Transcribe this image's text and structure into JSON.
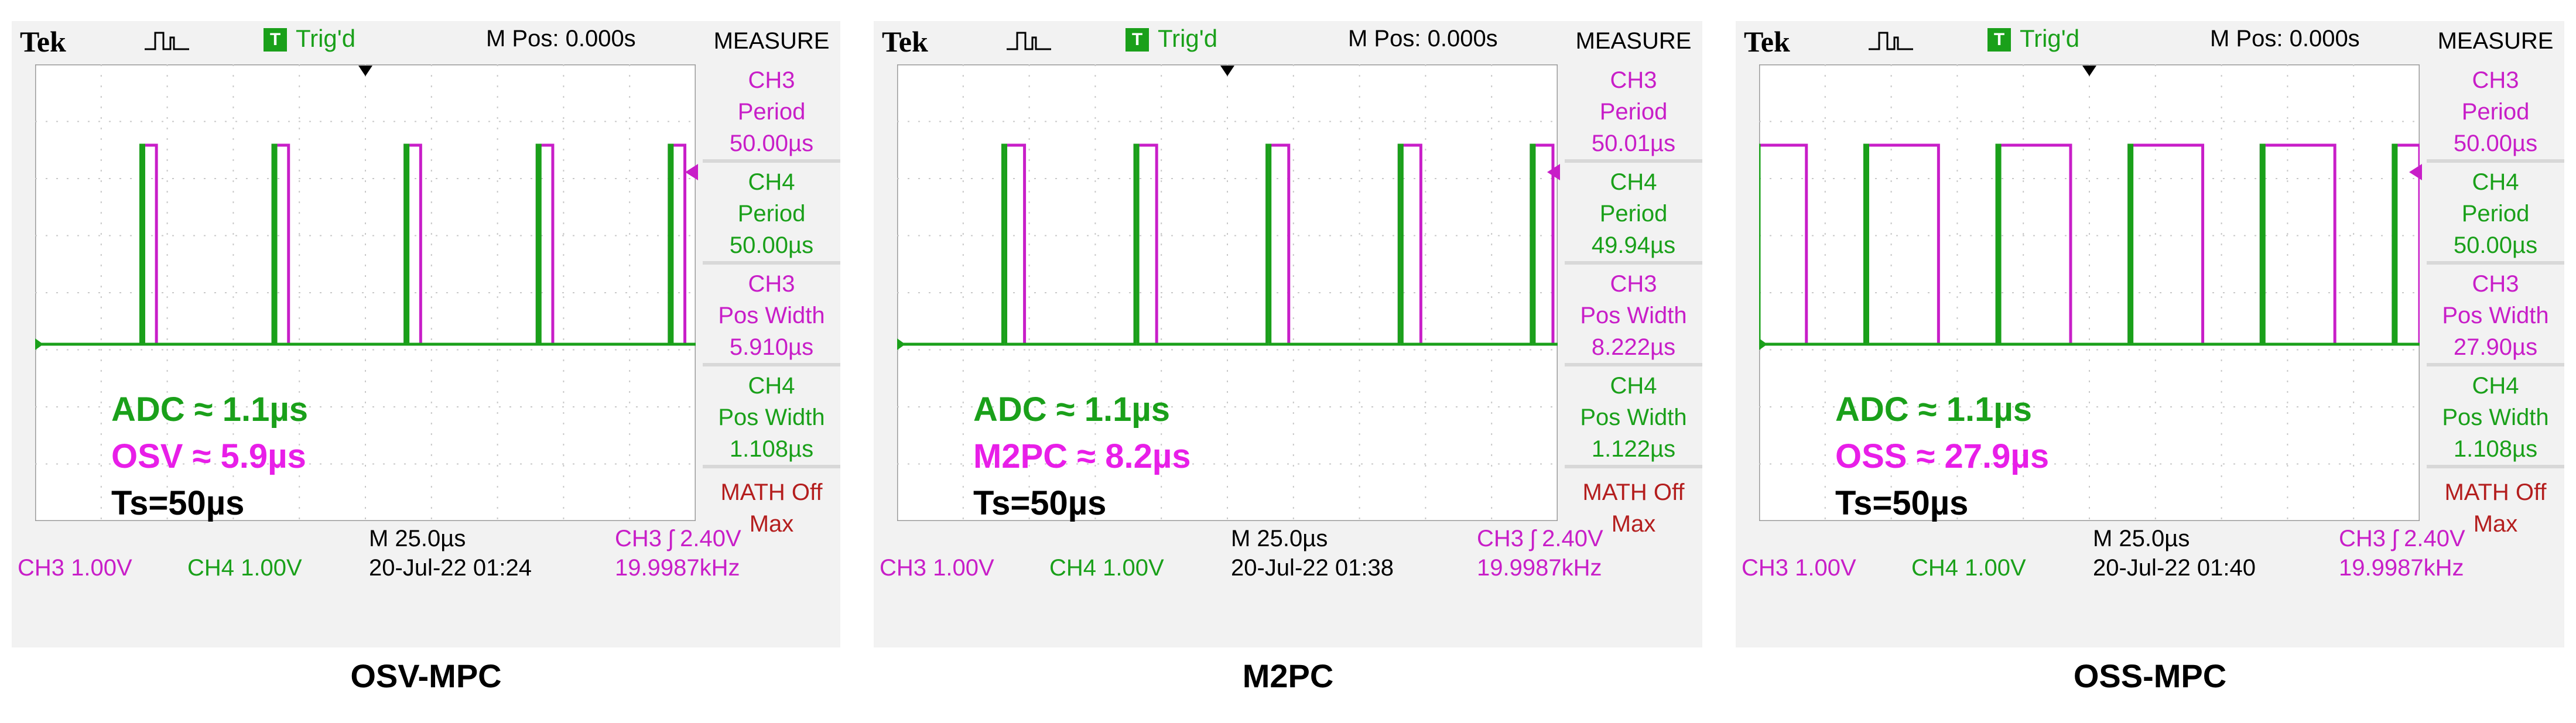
{
  "colors": {
    "ch3": "#c81ec8",
    "ch4": "#1aa01a",
    "math": "#b41e1e",
    "trig": "#1aa01a"
  },
  "panels": [
    {
      "brand": "Tek",
      "trig_icon": "T",
      "trig_status": "Trig'd",
      "mpos": "M Pos: 0.000s",
      "measure_title": "MEASURE",
      "measures": [
        {
          "ch": "CH3",
          "label": "Period",
          "value": "50.00µs"
        },
        {
          "ch": "CH4",
          "label": "Period",
          "value": "50.00µs"
        },
        {
          "ch": "CH3",
          "label": "Pos Width",
          "value": "5.910µs"
        },
        {
          "ch": "CH4",
          "label": "Pos Width",
          "value": "1.108µs"
        }
      ],
      "math": "MATH Off",
      "math_sub": "Max",
      "ch3_scale": "CH3  1.00V",
      "ch4_scale": "CH4  1.00V",
      "timebase": "M 25.0µs",
      "datetime": "20-Jul-22 01:24",
      "trigger": "CH3 ʃ 2.40V",
      "freq": "19.9987kHz",
      "ann_adc": "ADC ≈ 1.1µs",
      "ann_method": "OSV ≈ 5.9µs",
      "ann_ts": "Ts=50µs",
      "caption": "OSV-MPC",
      "pulse_width_us": 5.91,
      "adc_width_us": 1.108
    },
    {
      "brand": "Tek",
      "trig_icon": "T",
      "trig_status": "Trig'd",
      "mpos": "M Pos: 0.000s",
      "measure_title": "MEASURE",
      "measures": [
        {
          "ch": "CH3",
          "label": "Period",
          "value": "50.01µs"
        },
        {
          "ch": "CH4",
          "label": "Period",
          "value": "49.94µs"
        },
        {
          "ch": "CH3",
          "label": "Pos Width",
          "value": "8.222µs"
        },
        {
          "ch": "CH4",
          "label": "Pos Width",
          "value": "1.122µs"
        }
      ],
      "math": "MATH Off",
      "math_sub": "Max",
      "ch3_scale": "CH3  1.00V",
      "ch4_scale": "CH4  1.00V",
      "timebase": "M 25.0µs",
      "datetime": "20-Jul-22 01:38",
      "trigger": "CH3 ʃ 2.40V",
      "freq": "19.9987kHz",
      "ann_adc": "ADC ≈ 1.1µs",
      "ann_method": "M2PC ≈ 8.2µs",
      "ann_ts": "Ts=50µs",
      "caption": "M2PC",
      "pulse_width_us": 8.222,
      "adc_width_us": 1.122
    },
    {
      "brand": "Tek",
      "trig_icon": "T",
      "trig_status": "Trig'd",
      "mpos": "M Pos: 0.000s",
      "measure_title": "MEASURE",
      "measures": [
        {
          "ch": "CH3",
          "label": "Period",
          "value": "50.00µs"
        },
        {
          "ch": "CH4",
          "label": "Period",
          "value": "50.00µs"
        },
        {
          "ch": "CH3",
          "label": "Pos Width",
          "value": "27.90µs"
        },
        {
          "ch": "CH4",
          "label": "Pos Width",
          "value": "1.108µs"
        }
      ],
      "math": "MATH Off",
      "math_sub": "Max",
      "ch3_scale": "CH3  1.00V",
      "ch4_scale": "CH4  1.00V",
      "timebase": "M 25.0µs",
      "datetime": "20-Jul-22 01:40",
      "trigger": "CH3 ʃ 2.40V",
      "freq": "19.9987kHz",
      "ann_adc": "ADC ≈ 1.1µs",
      "ann_method": "OSS ≈ 27.9µs",
      "ann_ts": "Ts=50µs",
      "caption": "OSS-MPC",
      "pulse_width_us": 27.9,
      "adc_width_us": 1.108
    }
  ]
}
